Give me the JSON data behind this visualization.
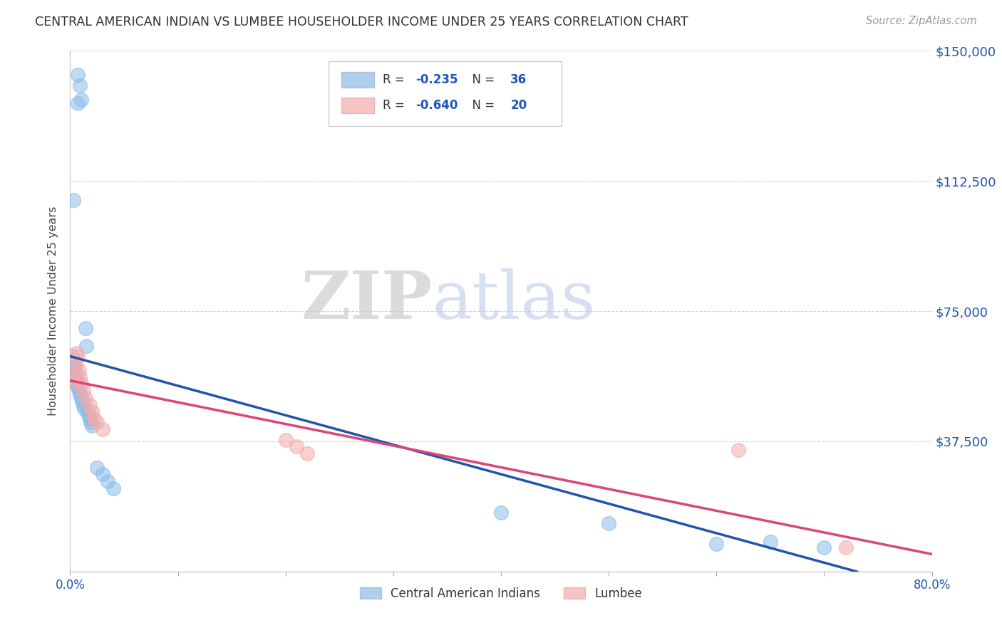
{
  "title": "CENTRAL AMERICAN INDIAN VS LUMBEE HOUSEHOLDER INCOME UNDER 25 YEARS CORRELATION CHART",
  "source": "Source: ZipAtlas.com",
  "ylabel": "Householder Income Under 25 years",
  "xlim": [
    0,
    0.8
  ],
  "ylim": [
    0,
    150000
  ],
  "yticks": [
    0,
    37500,
    75000,
    112500,
    150000
  ],
  "ytick_labels": [
    "",
    "$37,500",
    "$75,000",
    "$112,500",
    "$150,000"
  ],
  "xticks": [
    0.0,
    0.1,
    0.2,
    0.3,
    0.4,
    0.5,
    0.6,
    0.7,
    0.8
  ],
  "xtick_labels": [
    "0.0%",
    "",
    "",
    "",
    "",
    "",
    "",
    "",
    "80.0%"
  ],
  "blue_color": "#8BBCE8",
  "pink_color": "#F4AAAA",
  "trendline_blue": "#2255AA",
  "trendline_pink": "#DD4477",
  "blue_R": -0.235,
  "blue_N": 36,
  "pink_R": -0.64,
  "pink_N": 20,
  "blue_scatter_x": [
    0.007,
    0.009,
    0.007,
    0.01,
    0.003,
    0.002,
    0.003,
    0.004,
    0.004,
    0.005,
    0.005,
    0.006,
    0.006,
    0.007,
    0.008,
    0.009,
    0.01,
    0.011,
    0.012,
    0.013,
    0.014,
    0.015,
    0.016,
    0.017,
    0.018,
    0.019,
    0.02,
    0.025,
    0.03,
    0.035,
    0.04,
    0.4,
    0.5,
    0.6,
    0.65,
    0.7
  ],
  "blue_scatter_y": [
    143000,
    140000,
    135000,
    136000,
    107000,
    62000,
    60000,
    59000,
    57000,
    58000,
    56000,
    55000,
    54000,
    53000,
    52000,
    51000,
    50000,
    49000,
    48000,
    47000,
    70000,
    65000,
    46000,
    45000,
    44000,
    43000,
    42000,
    30000,
    28000,
    26000,
    24000,
    17000,
    14000,
    8000,
    8500,
    7000
  ],
  "pink_scatter_x": [
    0.003,
    0.004,
    0.005,
    0.006,
    0.007,
    0.008,
    0.009,
    0.01,
    0.012,
    0.014,
    0.018,
    0.02,
    0.022,
    0.025,
    0.03,
    0.2,
    0.21,
    0.22,
    0.62,
    0.72
  ],
  "pink_scatter_y": [
    57000,
    55000,
    60000,
    63000,
    62000,
    58000,
    56000,
    54000,
    52000,
    50000,
    48000,
    46000,
    44000,
    43000,
    41000,
    38000,
    36000,
    34000,
    35000,
    7000
  ],
  "watermark_zip": "ZIP",
  "watermark_atlas": "atlas",
  "blue_label": "Central American Indians",
  "pink_label": "Lumbee",
  "blue_trend_x_end": 0.73,
  "pink_trend_x_end": 0.8
}
